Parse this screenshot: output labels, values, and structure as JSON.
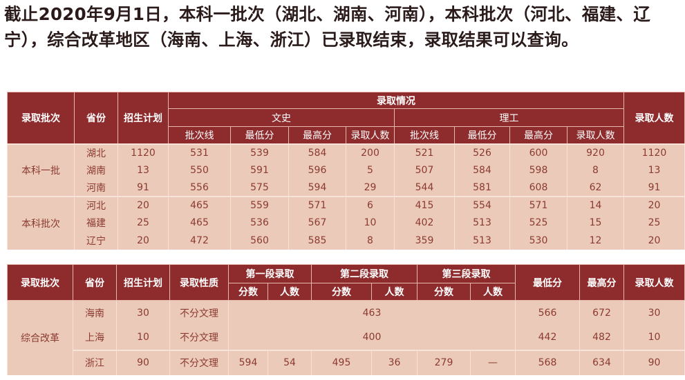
{
  "title": "截止2020年9月1日，本科一批次（湖北、湖南、河南），本科批次（河北、福建、辽宁），综合改革地区（海南、上海、浙江）已录取结束，录取结果可以查询。",
  "table1": {
    "headers": {
      "batch": "录取批次",
      "province": "省份",
      "plan": "招生计划",
      "situation": "录取情况",
      "arts": "文史",
      "science": "理工",
      "total": "录取人数",
      "sub": [
        "批次线",
        "最低分",
        "最高分",
        "录取人数",
        "批次线",
        "最低分",
        "最高分",
        "录取人数"
      ]
    },
    "groups": [
      {
        "batch": "本科一批",
        "rows": [
          [
            "湖北",
            "1120",
            "531",
            "539",
            "584",
            "200",
            "521",
            "526",
            "600",
            "920",
            "1120"
          ],
          [
            "湖南",
            "13",
            "550",
            "591",
            "596",
            "5",
            "507",
            "584",
            "598",
            "8",
            "13"
          ],
          [
            "河南",
            "91",
            "556",
            "575",
            "594",
            "29",
            "544",
            "581",
            "608",
            "62",
            "91"
          ]
        ]
      },
      {
        "batch": "本科批次",
        "rows": [
          [
            "河北",
            "20",
            "465",
            "559",
            "571",
            "6",
            "415",
            "554",
            "571",
            "14",
            "20"
          ],
          [
            "福建",
            "25",
            "465",
            "536",
            "567",
            "10",
            "402",
            "513",
            "525",
            "15",
            "25"
          ],
          [
            "辽宁",
            "20",
            "472",
            "560",
            "585",
            "8",
            "359",
            "513",
            "530",
            "12",
            "20"
          ]
        ]
      }
    ]
  },
  "table2": {
    "headers": {
      "batch": "录取批次",
      "province": "省份",
      "plan": "招生计划",
      "nature": "录取性质",
      "stage1": "第一段录取",
      "stage2": "第二段录取",
      "stage3": "第三段录取",
      "min": "最低分",
      "max": "最高分",
      "total": "录取人数",
      "score": "分数",
      "count": "人数"
    },
    "batch": "综合改革",
    "rows": [
      {
        "province": "海南",
        "plan": "30",
        "nature": "不分文理",
        "merged": "463",
        "min": "566",
        "max": "672",
        "total": "30"
      },
      {
        "province": "上海",
        "plan": "10",
        "nature": "不分文理",
        "merged": "400",
        "min": "442",
        "max": "482",
        "total": "10"
      },
      {
        "province": "浙江",
        "plan": "90",
        "nature": "不分文理",
        "s1": "594",
        "c1": "54",
        "s2": "495",
        "c2": "36",
        "s3": "279",
        "c3": "—",
        "min": "568",
        "max": "634",
        "total": "90"
      }
    ]
  }
}
